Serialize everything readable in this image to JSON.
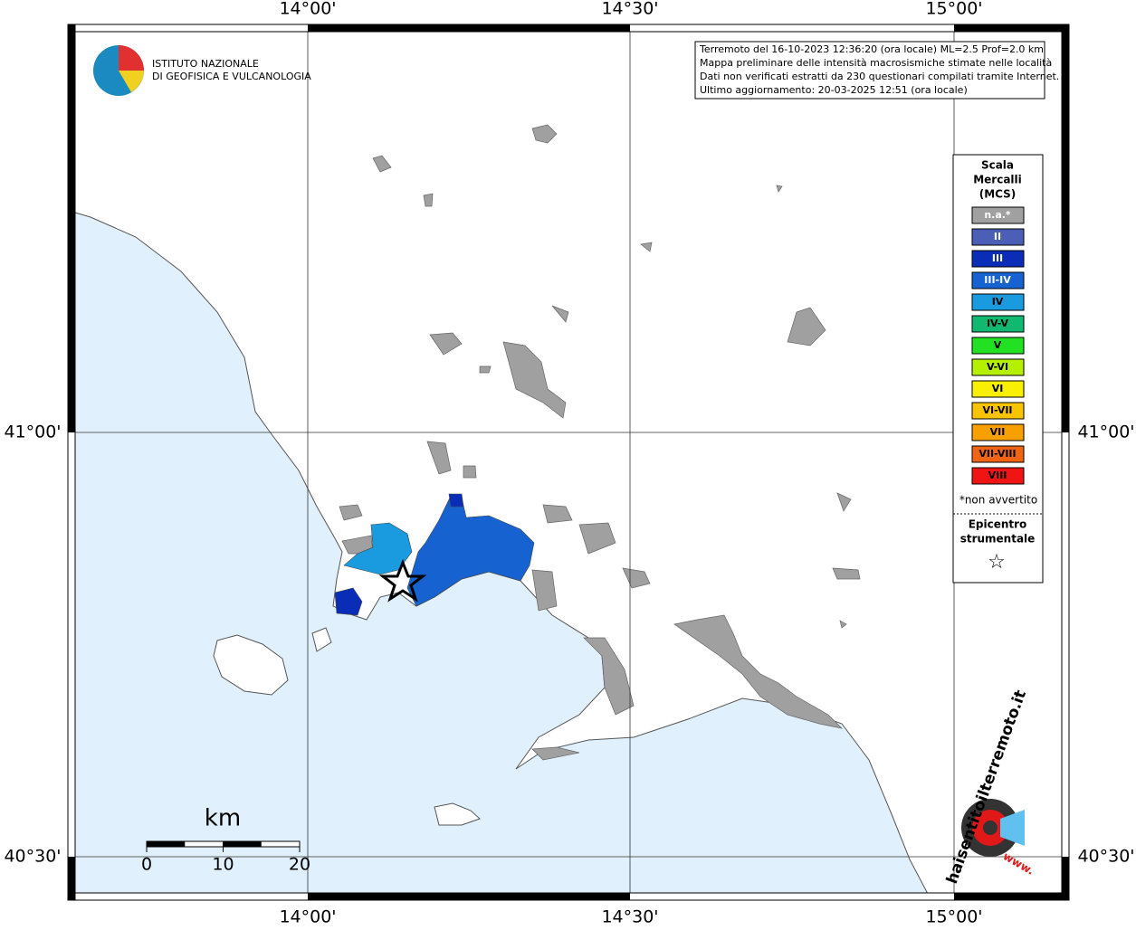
{
  "map": {
    "lon_labels": [
      "14°00'",
      "14°30'",
      "15°00'"
    ],
    "lat_labels": [
      "41°00'",
      "40°30'"
    ],
    "logo": {
      "line1": "ISTITUTO NAZIONALE",
      "line2": "DI GEOFISICA E VULCANOLOGIA"
    },
    "info": [
      "Terremoto del 16-10-2023 12:36:20 (ora locale) ML=2.5 Prof=2.0 km",
      "Mappa preliminare delle intensità macrosismiche stimate nelle località",
      "Dati non verificati estratti da 230 questionari compilati tramite Internet.",
      "Ultimo aggiornamento: 20-03-2025 12:51 (ora locale)"
    ],
    "legend": {
      "title": [
        "Scala",
        "Mercalli",
        "(MCS)"
      ],
      "items": [
        {
          "label": "n.a.*",
          "color": "#a0a0a0"
        },
        {
          "label": "II",
          "color": "#4a5fb5"
        },
        {
          "label": "III",
          "color": "#0a2db8"
        },
        {
          "label": "III-IV",
          "color": "#1562d0"
        },
        {
          "label": "IV",
          "color": "#1a9be0"
        },
        {
          "label": "IV-V",
          "color": "#10b870"
        },
        {
          "label": "V",
          "color": "#22e022"
        },
        {
          "label": "V-VI",
          "color": "#b4f000"
        },
        {
          "label": "VI",
          "color": "#f8f000"
        },
        {
          "label": "VI-VII",
          "color": "#f8c400"
        },
        {
          "label": "VII",
          "color": "#f8a000"
        },
        {
          "label": "VII-VIII",
          "color": "#f06414"
        },
        {
          "label": "VIII",
          "color": "#f01414"
        }
      ],
      "note": "*non avvertito",
      "epicenter": [
        "Epicentro",
        "strumentale"
      ],
      "star": "☆"
    },
    "scale_bar": {
      "unit": "km",
      "ticks": [
        0,
        10,
        20
      ]
    },
    "badge": {
      "text": "haisentitoilterremoto.it",
      "www": "www."
    }
  }
}
